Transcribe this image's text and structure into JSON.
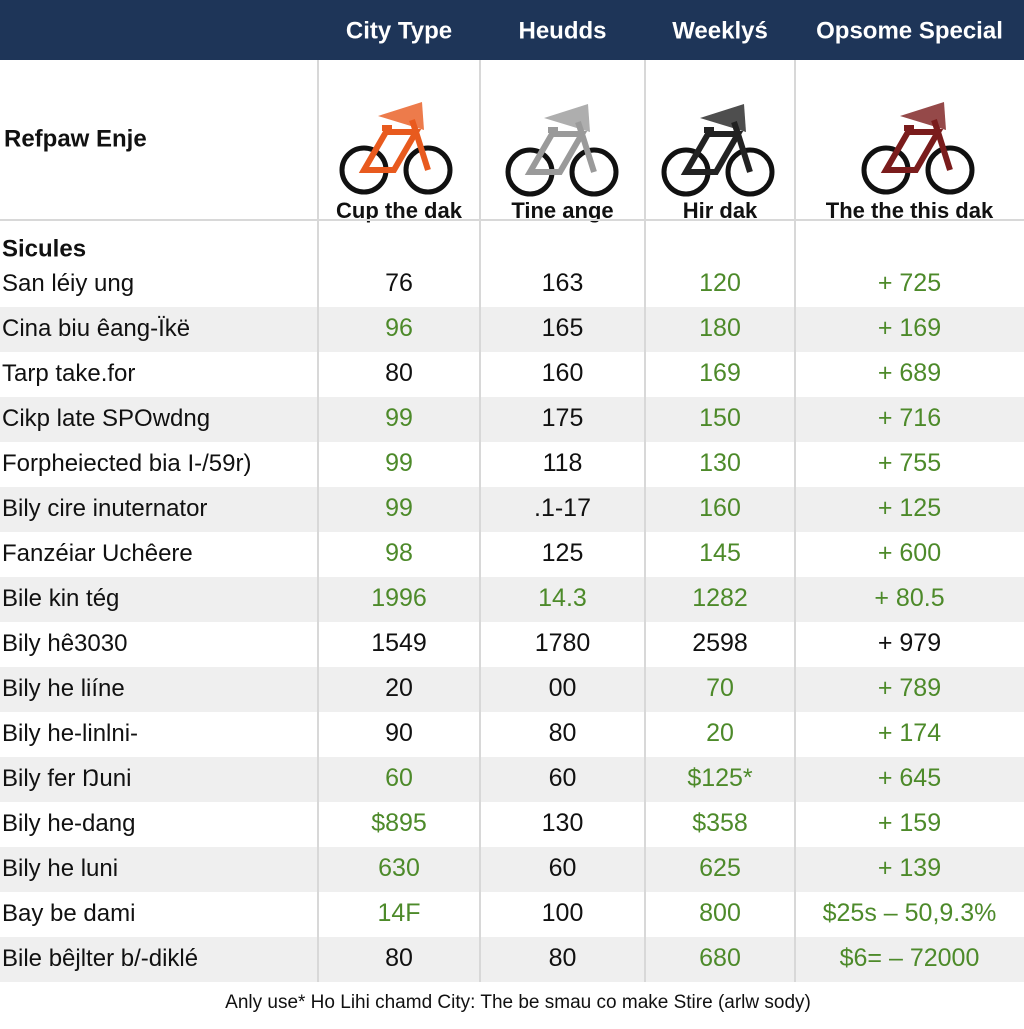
{
  "header": {
    "columns": [
      "City Type",
      "Heudds",
      "Weeklyś",
      "Opsome Special"
    ]
  },
  "products": {
    "title": "Refpaw Enje",
    "captions": [
      "Cup the dak",
      "Tine ange",
      "Hir dak",
      "The the this dak"
    ]
  },
  "section": "Sicules",
  "table": {
    "rows": [
      {
        "label": "San léiy ung",
        "cells": [
          "76",
          "163",
          "120",
          "+ 725"
        ],
        "tones": [
          "#111111",
          "#111111",
          "#4d8a2a",
          "#4d8a2a"
        ]
      },
      {
        "label": "Cina biu êang-Ïkë",
        "cells": [
          "96",
          "165",
          "180",
          "+ 169"
        ],
        "tones": [
          "#4d8a2a",
          "#111111",
          "#4d8a2a",
          "#4d8a2a"
        ]
      },
      {
        "label": "Tarp take.for",
        "cells": [
          "80",
          "160",
          "169",
          "+ 689"
        ],
        "tones": [
          "#111111",
          "#111111",
          "#4d8a2a",
          "#4d8a2a"
        ]
      },
      {
        "label": "Cikp late SPOwdng",
        "cells": [
          "99",
          "175",
          "150",
          "+ 716"
        ],
        "tones": [
          "#4d8a2a",
          "#111111",
          "#4d8a2a",
          "#4d8a2a"
        ]
      },
      {
        "label": "Forpheiected bia I-/59r)",
        "cells": [
          "99",
          "118",
          "130",
          "+ 755"
        ],
        "tones": [
          "#4d8a2a",
          "#111111",
          "#4d8a2a",
          "#4d8a2a"
        ]
      },
      {
        "label": "Bily cire inuternator",
        "cells": [
          "99",
          ".1-17",
          "160",
          "+ 125"
        ],
        "tones": [
          "#4d8a2a",
          "#111111",
          "#4d8a2a",
          "#4d8a2a"
        ]
      },
      {
        "label": "Fanzéiar Uchêere",
        "cells": [
          "98",
          "125",
          "145",
          "+ 600"
        ],
        "tones": [
          "#4d8a2a",
          "#111111",
          "#4d8a2a",
          "#4d8a2a"
        ]
      },
      {
        "label": "Bile kin tég",
        "cells": [
          "1996",
          "14.3",
          "1282",
          "+ 80.5"
        ],
        "tones": [
          "#4d8a2a",
          "#4d8a2a",
          "#4d8a2a",
          "#4d8a2a"
        ]
      },
      {
        "label": "Bily hê3030",
        "cells": [
          "1549",
          "1780",
          "2598",
          "+ 979"
        ],
        "tones": [
          "#111111",
          "#111111",
          "#111111",
          "#111111"
        ]
      },
      {
        "label": "Bily he liíne",
        "cells": [
          "20",
          "00",
          "70",
          "+ 789"
        ],
        "tones": [
          "#111111",
          "#111111",
          "#4d8a2a",
          "#4d8a2a"
        ]
      },
      {
        "label": "Bily he-linlni-",
        "cells": [
          "90",
          "80",
          "20",
          "+ 174"
        ],
        "tones": [
          "#111111",
          "#111111",
          "#4d8a2a",
          "#4d8a2a"
        ]
      },
      {
        "label": "Bily fer Ŋuni",
        "cells": [
          "60",
          "60",
          "$125*",
          "+ 645"
        ],
        "tones": [
          "#4d8a2a",
          "#111111",
          "#4d8a2a",
          "#4d8a2a"
        ]
      },
      {
        "label": "Bily he-dang",
        "cells": [
          "$895",
          "130",
          "$358",
          "+ 159"
        ],
        "tones": [
          "#4d8a2a",
          "#111111",
          "#4d8a2a",
          "#4d8a2a"
        ]
      },
      {
        "label": "Bily he luni",
        "cells": [
          "630",
          "60",
          "625",
          "+ 139"
        ],
        "tones": [
          "#4d8a2a",
          "#111111",
          "#4d8a2a",
          "#4d8a2a"
        ]
      },
      {
        "label": "Bay be dami",
        "cells": [
          "14F",
          "100",
          "800",
          "$25s – 50,9.3%"
        ],
        "tones": [
          "#4d8a2a",
          "#111111",
          "#4d8a2a",
          "#4d8a2a"
        ]
      },
      {
        "label": "Bile bêjlter b/-diklé",
        "cells": [
          "80",
          "80",
          "680",
          "$6= – 72000"
        ],
        "tones": [
          "#111111",
          "#111111",
          "#4d8a2a",
          "#4d8a2a"
        ]
      }
    ]
  },
  "footer": "Anly use* Ho Lihi chamd City: The be smau co make Stire (arlw sody)"
}
